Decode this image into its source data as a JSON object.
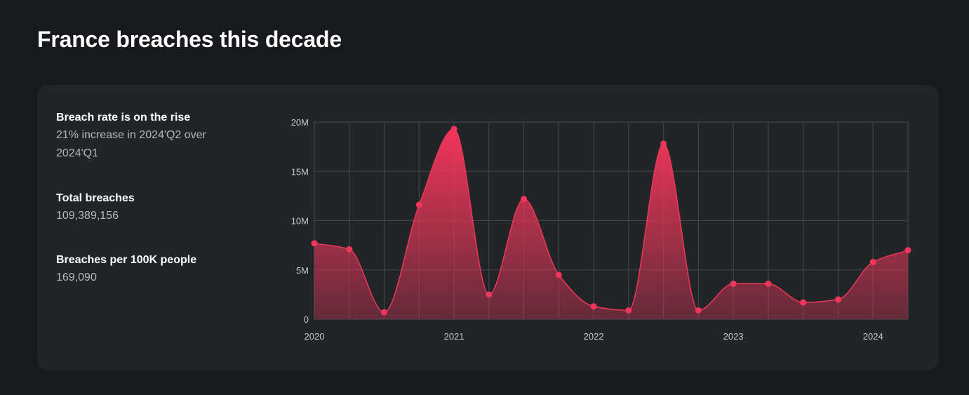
{
  "page": {
    "title": "France breaches this decade"
  },
  "stats": [
    {
      "title": "Breach rate is on the rise",
      "body": "21% increase in 2024'Q2 over 2024'Q1"
    },
    {
      "title": "Total breaches",
      "body": "109,389,156"
    },
    {
      "title": "Breaches per 100K people",
      "body": "169,090"
    }
  ],
  "colors": {
    "accent": "#f0365a",
    "background": "#17191c",
    "card": "#222528",
    "grid": "#44474c"
  },
  "chart_data": {
    "type": "area",
    "title": "",
    "xlabel": "",
    "ylabel": "",
    "x": [
      "2020-Q1",
      "2020-Q2",
      "2020-Q3",
      "2020-Q4",
      "2021-Q1",
      "2021-Q2",
      "2021-Q3",
      "2021-Q4",
      "2022-Q1",
      "2022-Q2",
      "2022-Q3",
      "2022-Q4",
      "2023-Q1",
      "2023-Q2",
      "2023-Q3",
      "2023-Q4",
      "2024-Q1",
      "2024-Q2"
    ],
    "series": [
      {
        "values": [
          7700000,
          7100000,
          700000,
          11600000,
          19300000,
          2500000,
          12200000,
          4500000,
          1300000,
          900000,
          17800000,
          900000,
          3600000,
          3600000,
          1700000,
          2000000,
          5800000,
          7000000
        ]
      }
    ],
    "ylim": [
      0,
      20000000
    ],
    "y_ticks": [
      {
        "value": 0,
        "label": "0"
      },
      {
        "value": 5000000,
        "label": "5M"
      },
      {
        "value": 10000000,
        "label": "10M"
      },
      {
        "value": 15000000,
        "label": "15M"
      },
      {
        "value": 20000000,
        "label": "20M"
      }
    ],
    "x_ticks": [
      {
        "index": 0,
        "label": "2020"
      },
      {
        "index": 4,
        "label": "2021"
      },
      {
        "index": 8,
        "label": "2022"
      },
      {
        "index": 12,
        "label": "2023"
      },
      {
        "index": 16,
        "label": "2024"
      }
    ],
    "grid": true,
    "legend": "none"
  }
}
